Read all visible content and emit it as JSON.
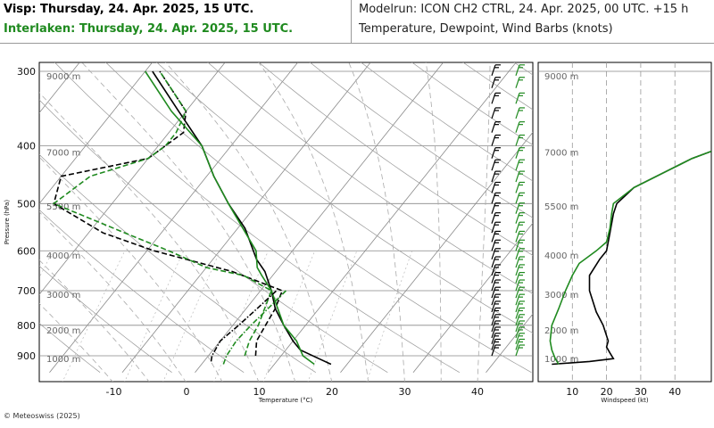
{
  "header": {
    "station_line": "Visp: Thursday, 24. Apr. 2025, 15 UTC.",
    "compare_line": "Interlaken: Thursday, 24. Apr. 2025, 15 UTC.",
    "model_line": "Modelrun: ICON CH2 CTRL, 24. Apr. 2025, 00 UTC. +15 h",
    "content_line": "Temperature, Dewpoint, Wind Barbs (knots)"
  },
  "footer": {
    "copyright": "© Meteoswiss (2025)"
  },
  "colors": {
    "visp": "#000000",
    "interlaken": "#1f8a1f",
    "grid": "#999999"
  },
  "chart_data": [
    {
      "type": "line",
      "chart": "skew-T log-P diagram",
      "xlabel": "Temperature (°C)",
      "ylabel": "Pressure (hPa)",
      "x_ticks": [
        "-10",
        "0",
        "10",
        "20",
        "30",
        "40"
      ],
      "x_tick_values": [
        -10,
        0,
        10,
        20,
        30,
        40
      ],
      "y_ticks": [
        "300",
        "400",
        "500",
        "600",
        "700",
        "800",
        "900"
      ],
      "y_tick_values": [
        300,
        400,
        500,
        600,
        700,
        800,
        900
      ],
      "height_labels": [
        "9000 m",
        "7000 m",
        "5500 m",
        "4000 m",
        "3000 m",
        "2000 m",
        "1000 m"
      ],
      "height_label_pressures": [
        305,
        410,
        505,
        610,
        710,
        815,
        910
      ],
      "plim": [
        290,
        960
      ],
      "grid": true,
      "series": [
        {
          "name": "Visp",
          "variable": "temperature",
          "style": "solid",
          "color": "#000000",
          "points": [
            [
              930,
              17.8
            ],
            [
              910,
              15.5
            ],
            [
              880,
              12
            ],
            [
              850,
              10
            ],
            [
              800,
              7
            ],
            [
              750,
              4
            ],
            [
              700,
              1.5
            ],
            [
              650,
              -1.5
            ],
            [
              620,
              -4
            ],
            [
              550,
              -9
            ],
            [
              500,
              -14
            ],
            [
              450,
              -19
            ],
            [
              400,
              -24
            ],
            [
              350,
              -31
            ],
            [
              300,
              -39
            ]
          ]
        },
        {
          "name": "Visp",
          "variable": "dewpoint",
          "style": "dashed",
          "color": "#000000",
          "points": [
            [
              900,
              6.5
            ],
            [
              850,
              5
            ],
            [
              800,
              4.5
            ],
            [
              750,
              4
            ],
            [
              700,
              3
            ],
            [
              650,
              -6
            ],
            [
              600,
              -19
            ],
            [
              560,
              -28
            ],
            [
              500,
              -38
            ],
            [
              450,
              -40
            ],
            [
              420,
              -30
            ],
            [
              380,
              -28
            ],
            [
              350,
              -30
            ],
            [
              300,
              -38
            ]
          ]
        },
        {
          "name": "Interlaken",
          "variable": "temperature",
          "style": "solid",
          "color": "#1f8a1f",
          "points": [
            [
              930,
              15.5
            ],
            [
              900,
              13
            ],
            [
              850,
              10.5
            ],
            [
              800,
              7
            ],
            [
              700,
              1.5
            ],
            [
              660,
              -1.5
            ],
            [
              640,
              -3
            ],
            [
              600,
              -5
            ],
            [
              500,
              -14
            ],
            [
              450,
              -19
            ],
            [
              400,
              -24
            ],
            [
              350,
              -32
            ],
            [
              300,
              -40
            ]
          ]
        },
        {
          "name": "Interlaken",
          "variable": "dewpoint",
          "style": "dashed",
          "color": "#1f8a1f",
          "points": [
            [
              900,
              5
            ],
            [
              850,
              4
            ],
            [
              800,
              3.5
            ],
            [
              700,
              1.5
            ],
            [
              660,
              -4
            ],
            [
              640,
              -10
            ],
            [
              600,
              -17
            ],
            [
              560,
              -25
            ],
            [
              500,
              -38
            ],
            [
              450,
              -36
            ],
            [
              420,
              -30
            ],
            [
              400,
              -29
            ],
            [
              380,
              -29
            ],
            [
              350,
              -30
            ],
            [
              300,
              -38
            ]
          ]
        },
        {
          "name": "Visp",
          "variable": "parcel",
          "style": "dash-dot",
          "color": "#000000",
          "points": [
            [
              920,
              1
            ],
            [
              900,
              0.5
            ],
            [
              850,
              0
            ],
            [
              800,
              0.8
            ],
            [
              750,
              1.5
            ],
            [
              700,
              2.2
            ]
          ]
        },
        {
          "name": "Interlaken",
          "variable": "parcel",
          "style": "dash-dot",
          "color": "#1f8a1f",
          "points": [
            [
              930,
              3
            ],
            [
              900,
              2.5
            ],
            [
              850,
              2.2
            ],
            [
              800,
              2.5
            ],
            [
              750,
              3
            ],
            [
              700,
              3.5
            ]
          ]
        }
      ]
    },
    {
      "type": "line",
      "chart": "wind speed profile",
      "xlabel": "Windspeed (kt)",
      "x_ticks": [
        "10",
        "20",
        "30",
        "40"
      ],
      "x_tick_values": [
        10,
        20,
        30,
        40
      ],
      "xlim": [
        0,
        44
      ],
      "series": [
        {
          "name": "Visp",
          "color": "#000000",
          "points": [
            [
              930,
              4
            ],
            [
              920,
              15
            ],
            [
              910,
              22
            ],
            [
              890,
              21
            ],
            [
              870,
              20
            ],
            [
              850,
              20.5
            ],
            [
              800,
              19
            ],
            [
              760,
              17
            ],
            [
              700,
              15
            ],
            [
              660,
              15
            ],
            [
              620,
              18
            ],
            [
              600,
              20
            ],
            [
              560,
              21
            ],
            [
              520,
              22
            ],
            [
              500,
              23
            ],
            [
              470,
              28
            ],
            [
              440,
              38
            ],
            [
              420,
              45
            ],
            [
              400,
              55
            ]
          ]
        },
        {
          "name": "Interlaken",
          "color": "#1f8a1f",
          "points": [
            [
              930,
              6
            ],
            [
              910,
              5
            ],
            [
              880,
              4
            ],
            [
              850,
              3.5
            ],
            [
              800,
              4
            ],
            [
              750,
              6
            ],
            [
              700,
              8
            ],
            [
              660,
              10
            ],
            [
              630,
              12
            ],
            [
              600,
              17
            ],
            [
              580,
              20
            ],
            [
              550,
              21
            ],
            [
              520,
              21.5
            ],
            [
              500,
              22
            ],
            [
              470,
              28
            ],
            [
              440,
              38
            ],
            [
              420,
              45
            ],
            [
              400,
              55
            ]
          ]
        }
      ]
    }
  ]
}
